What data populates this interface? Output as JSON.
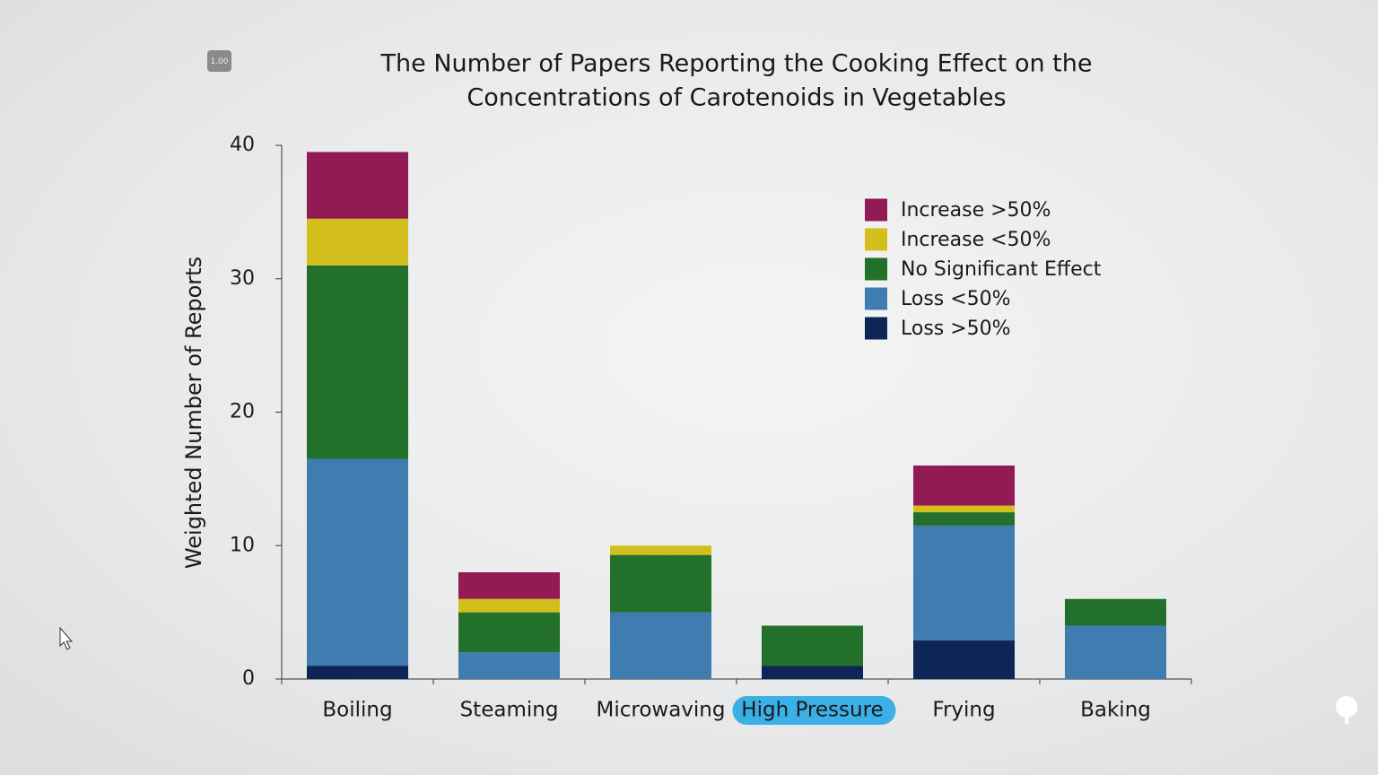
{
  "badge": "1.00",
  "chart_data": {
    "type": "stacked_bar",
    "title": [
      "The Number of Papers Reporting the Cooking Effect on the",
      "Concentrations of Carotenoids in Vegetables"
    ],
    "y_label": "Weighted Number of Reports",
    "categories": [
      "Boiling",
      "Steaming",
      "Microwaving",
      "High Pressure",
      "Frying",
      "Baking"
    ],
    "highlighted_category": 3,
    "series": [
      {
        "name": "Loss >50%",
        "color": "#0e2557",
        "values": [
          1,
          0,
          0,
          1,
          2.9,
          0
        ]
      },
      {
        "name": "Loss <50%",
        "color": "#3f7db1",
        "values": [
          15.5,
          2,
          5,
          0,
          8.6,
          4
        ]
      },
      {
        "name": "No Significant Effect",
        "color": "#22702a",
        "values": [
          14.5,
          3,
          4.3,
          3,
          1,
          2
        ]
      },
      {
        "name": "Increase <50%",
        "color": "#d4be1c",
        "values": [
          3.5,
          1,
          0.7,
          0,
          0.5,
          0
        ]
      },
      {
        "name": "Increase >50%",
        "color": "#921a55",
        "values": [
          5,
          2,
          0,
          0,
          3,
          0
        ]
      }
    ],
    "ylim": [
      0,
      40
    ],
    "yticks": [
      0,
      10,
      20,
      30,
      40
    ],
    "grid": false,
    "legend": "upper right"
  }
}
